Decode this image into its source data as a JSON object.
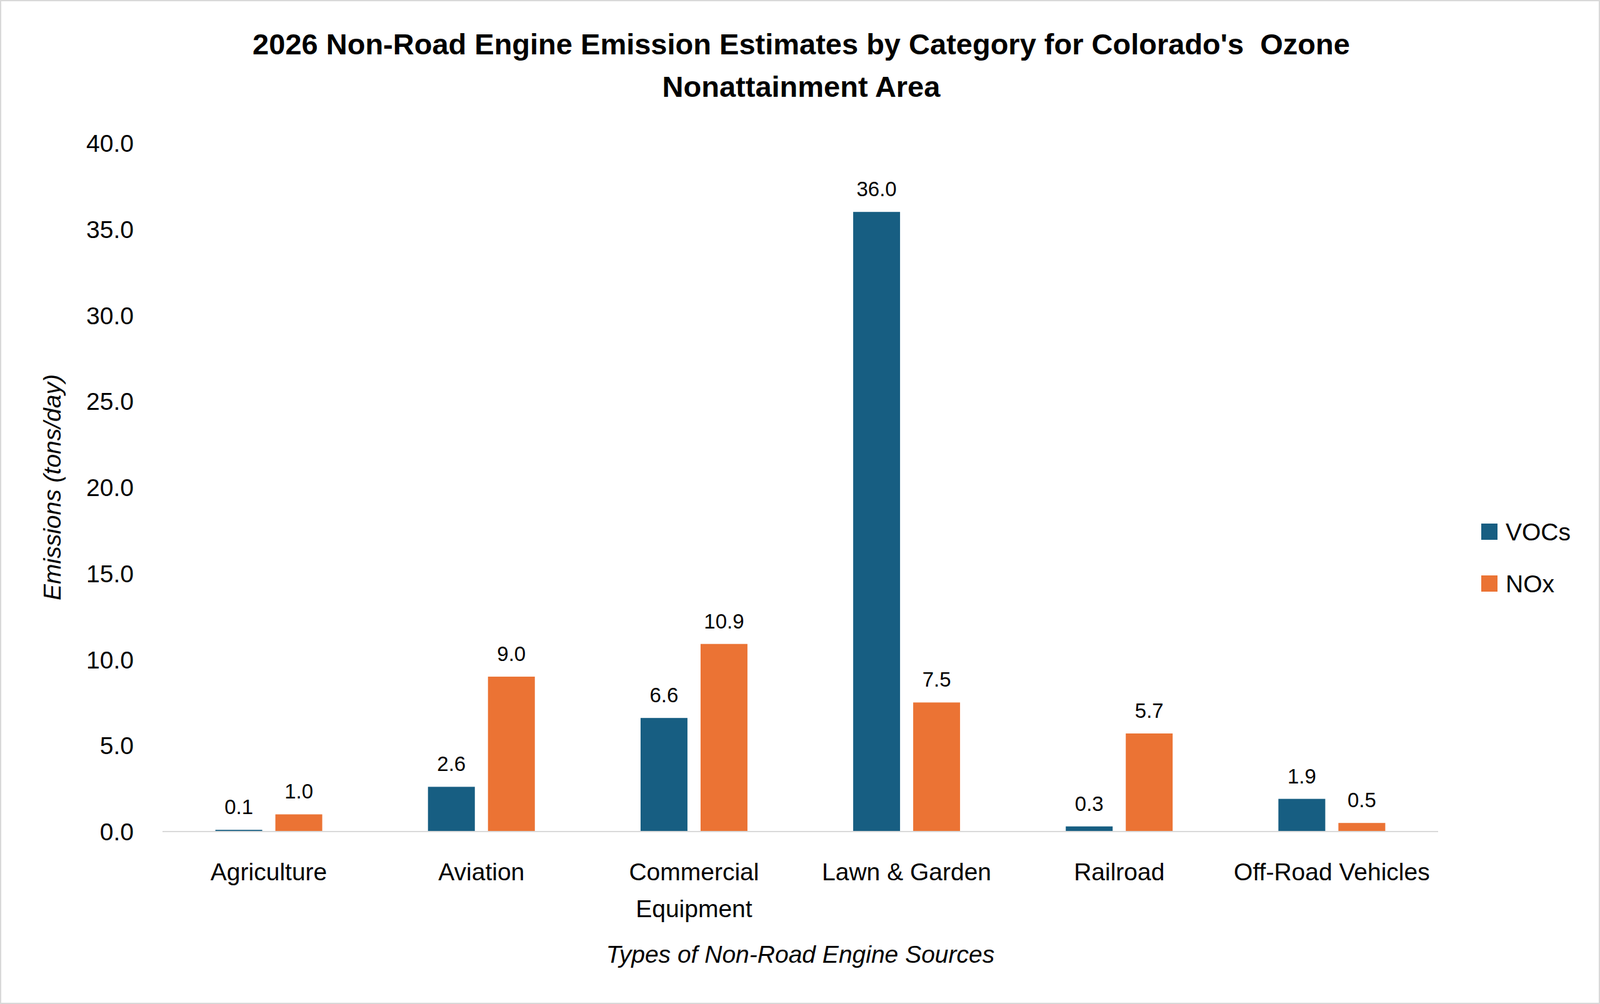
{
  "chart_data": {
    "type": "bar",
    "title": "2026 Non-Road Engine Emission Estimates by Category for Colorado's  Ozone Nonattainment Area",
    "x_label": "Types of Non-Road Engine Sources",
    "y_label": "Emissions (tons/day)",
    "categories": [
      "Agriculture",
      "Aviation",
      "Commercial Equipment",
      "Lawn & Garden",
      "Railroad",
      "Off-Road Vehicles"
    ],
    "series": [
      {
        "name": "VOCs",
        "color": "#175e82",
        "values": [
          0.1,
          2.6,
          6.6,
          36.0,
          0.3,
          1.9
        ],
        "value_labels": [
          "0.1",
          "2.6",
          "6.6",
          "36.0",
          "0.3",
          "1.9"
        ]
      },
      {
        "name": "NOx",
        "color": "#eb7334",
        "values": [
          1.0,
          9.0,
          10.9,
          7.5,
          5.7,
          0.5
        ],
        "value_labels": [
          "1.0",
          "9.0",
          "10.9",
          "7.5",
          "5.7",
          "0.5"
        ]
      }
    ],
    "ylim": [
      0,
      40
    ],
    "yticks": [
      {
        "value": 0,
        "label": "0.0"
      },
      {
        "value": 5,
        "label": "5.0"
      },
      {
        "value": 10,
        "label": "10.0"
      },
      {
        "value": 15,
        "label": "15.0"
      },
      {
        "value": 20,
        "label": "20.0"
      },
      {
        "value": 25,
        "label": "25.0"
      },
      {
        "value": 30,
        "label": "30.0"
      },
      {
        "value": 35,
        "label": "35.0"
      },
      {
        "value": 40,
        "label": "40.0"
      }
    ],
    "grid": false,
    "legend": "right",
    "data_labels": true
  }
}
